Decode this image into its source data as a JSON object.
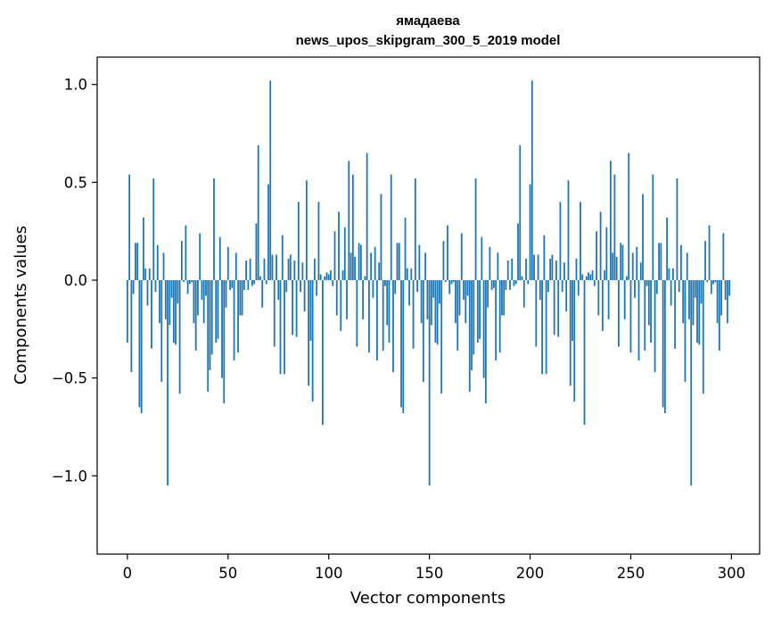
{
  "chart_data": {
    "type": "bar",
    "title": "ямадаева",
    "subtitle": "news_upos_skipgram_300_5_2019 model",
    "xlabel": "Vector components",
    "ylabel": "Components values",
    "xlim": [
      -15,
      314
    ],
    "ylim": [
      -1.4,
      1.14
    ],
    "xticks": [
      0,
      50,
      100,
      150,
      200,
      250,
      300
    ],
    "yticks": [
      -1.0,
      -0.5,
      0.0,
      0.5,
      1.0
    ],
    "xtick_labels": [
      "0",
      "50",
      "100",
      "150",
      "200",
      "250",
      "300"
    ],
    "ytick_labels": [
      "−1.0",
      "−0.5",
      "0.0",
      "0.5",
      "1.0"
    ],
    "bar_color": "#1f77b4",
    "values": [
      -0.32,
      0.54,
      -0.47,
      -0.07,
      0.19,
      0.19,
      -0.65,
      -0.68,
      0.32,
      0.06,
      -0.13,
      0.06,
      -0.35,
      0.52,
      -0.06,
      0.18,
      -0.22,
      -0.52,
      0.14,
      -0.2,
      -1.05,
      -0.23,
      -0.09,
      -0.32,
      -0.33,
      -0.12,
      -0.58,
      0.2,
      -0.01,
      0.28,
      -0.07,
      -0.02,
      -0.01,
      -0.22,
      -0.36,
      -0.18,
      0.24,
      -0.1,
      -0.22,
      -0.08,
      -0.57,
      -0.46,
      -0.38,
      0.52,
      -0.32,
      -0.3,
      0.22,
      -0.5,
      -0.63,
      -0.14,
      0.17,
      -0.05,
      -0.04,
      -0.41,
      0.14,
      -0.37,
      -0.18,
      -0.18,
      -0.05,
      0.1,
      -0.05,
      0.11,
      -0.03,
      -0.02,
      0.29,
      0.69,
      0.02,
      -0.14,
      0.11,
      -0.02,
      0.49,
      1.02,
      0.13,
      -0.34,
      0.13,
      -0.1,
      -0.48,
      0.23,
      -0.48,
      -0.06,
      0.11,
      0.13,
      -0.28,
      0.1,
      -0.29,
      0.4,
      -0.06,
      0.09,
      -0.16,
      0.51,
      -0.54,
      -0.31,
      -0.62,
      0.11,
      -0.08,
      0.4,
      0.03,
      -0.74,
      0.02,
      0.04,
      0.03,
      0.05,
      -0.03,
      0.25,
      -0.18,
      0.35,
      -0.26,
      0.05,
      0.27,
      -0.2,
      0.61,
      0.14,
      0.54,
      0.12,
      -0.34,
      0.19,
      0.18,
      -0.2,
      0.02,
      0.65,
      -0.37,
      0.14,
      -0.09,
      0.17,
      -0.41,
      0.09,
      0.44,
      -0.36,
      -0.03,
      -0.23
    ]
  }
}
